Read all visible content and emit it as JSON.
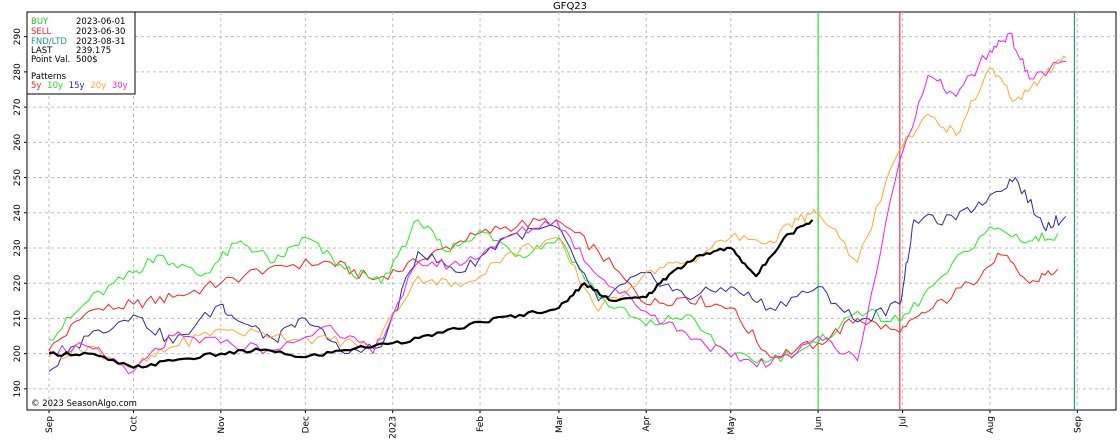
{
  "chart_data": {
    "type": "line",
    "title": "GFQ23",
    "copyright": "© 2023 SeasonAlgo.com",
    "info": {
      "buy_label": "BUY",
      "buy_value": "2023-06-01",
      "sell_label": "SELL",
      "sell_value": "2023-06-30",
      "fnd_label": "FND/LTD",
      "fnd_value": "2023-08-31",
      "last_label": "LAST",
      "last_value": "239.175",
      "pv_label": "Point Val.",
      "pv_value": "500$",
      "patterns_label": "Patterns"
    },
    "x_start": "2022-09-01",
    "x_end": "2023-09-08",
    "ylim": [
      184,
      297
    ],
    "yticks": [
      190,
      200,
      210,
      220,
      230,
      240,
      250,
      260,
      270,
      280,
      290
    ],
    "xticks": [
      {
        "date": "2022-09-01",
        "label": "Sep"
      },
      {
        "date": "2022-10-01",
        "label": "Oct"
      },
      {
        "date": "2022-11-01",
        "label": "Nov"
      },
      {
        "date": "2022-12-01",
        "label": "Dec"
      },
      {
        "date": "2023-01-01",
        "label": "2023"
      },
      {
        "date": "2023-02-01",
        "label": "Feb"
      },
      {
        "date": "2023-03-01",
        "label": "Mar"
      },
      {
        "date": "2023-04-01",
        "label": "Apr"
      },
      {
        "date": "2023-05-01",
        "label": "May"
      },
      {
        "date": "2023-06-01",
        "label": "Jun"
      },
      {
        "date": "2023-07-01",
        "label": "Jul"
      },
      {
        "date": "2023-08-01",
        "label": "Aug"
      },
      {
        "date": "2023-09-01",
        "label": "Sep"
      }
    ],
    "vlines": [
      {
        "date": "2023-06-01",
        "color": "#33dd33"
      },
      {
        "date": "2023-06-30",
        "color": "#ee3344"
      },
      {
        "date": "2023-08-31",
        "color": "#229977"
      }
    ],
    "grid": true,
    "series": [
      {
        "name": "5y",
        "color": "#ff2222",
        "width": 1,
        "x": [
          "2022-09-01",
          "2022-09-15",
          "2022-10-01",
          "2022-10-15",
          "2022-11-01",
          "2022-11-20",
          "2022-12-10",
          "2022-12-25",
          "2023-01-10",
          "2023-01-25",
          "2023-02-10",
          "2023-02-28",
          "2023-03-15",
          "2023-04-01",
          "2023-04-15",
          "2023-05-01",
          "2023-05-15",
          "2023-06-01",
          "2023-06-15",
          "2023-06-30",
          "2023-07-10",
          "2023-07-25",
          "2023-08-05",
          "2023-08-15",
          "2023-08-25"
        ],
        "y": [
          201,
          212,
          214,
          216,
          220,
          225,
          226,
          221,
          226,
          232,
          236,
          238,
          229,
          214,
          216,
          213,
          199,
          203,
          210,
          206,
          212,
          220,
          228,
          220,
          224
        ]
      },
      {
        "name": "10y",
        "color": "#22ee22",
        "width": 1,
        "x": [
          "2022-09-01",
          "2022-09-15",
          "2022-10-01",
          "2022-10-10",
          "2022-10-25",
          "2022-11-08",
          "2022-11-20",
          "2022-12-01",
          "2022-12-15",
          "2022-12-28",
          "2023-01-10",
          "2023-01-20",
          "2023-02-01",
          "2023-02-15",
          "2023-03-01",
          "2023-03-15",
          "2023-04-01",
          "2023-04-15",
          "2023-05-01",
          "2023-05-15",
          "2023-06-01",
          "2023-06-15",
          "2023-06-30",
          "2023-07-15",
          "2023-08-01",
          "2023-08-15",
          "2023-08-25"
        ],
        "y": [
          204,
          215,
          223,
          228,
          222,
          232,
          226,
          233,
          224,
          220,
          238,
          229,
          235,
          228,
          233,
          216,
          208,
          211,
          199,
          198,
          203,
          212,
          209,
          222,
          236,
          232,
          234
        ]
      },
      {
        "name": "15y",
        "color": "#2a2aaa",
        "width": 1,
        "x": [
          "2022-09-01",
          "2022-09-15",
          "2022-10-01",
          "2022-10-15",
          "2022-11-01",
          "2022-11-08",
          "2022-11-20",
          "2022-12-01",
          "2022-12-15",
          "2022-12-28",
          "2023-01-10",
          "2023-01-25",
          "2023-02-10",
          "2023-02-28",
          "2023-03-15",
          "2023-04-01",
          "2023-04-15",
          "2023-05-01",
          "2023-05-15",
          "2023-06-01",
          "2023-06-15",
          "2023-06-30",
          "2023-07-05",
          "2023-07-20",
          "2023-08-01",
          "2023-08-10",
          "2023-08-20",
          "2023-08-28"
        ],
        "y": [
          195,
          205,
          211,
          203,
          214,
          209,
          204,
          210,
          200,
          202,
          229,
          223,
          233,
          236,
          215,
          223,
          216,
          219,
          213,
          219,
          209,
          214,
          238,
          238,
          245,
          250,
          236,
          239
        ]
      },
      {
        "name": "20y",
        "color": "#ffaa33",
        "width": 1,
        "x": [
          "2022-09-01",
          "2022-09-15",
          "2022-10-01",
          "2022-10-15",
          "2022-11-01",
          "2022-11-20",
          "2022-12-10",
          "2022-12-25",
          "2023-01-10",
          "2023-01-25",
          "2023-02-10",
          "2023-02-28",
          "2023-03-15",
          "2023-04-01",
          "2023-04-15",
          "2023-05-01",
          "2023-05-15",
          "2023-05-25",
          "2023-06-01",
          "2023-06-15",
          "2023-06-30",
          "2023-07-10",
          "2023-07-20",
          "2023-08-01",
          "2023-08-10",
          "2023-08-20",
          "2023-08-28"
        ],
        "y": [
          199,
          202,
          196,
          202,
          207,
          205,
          204,
          202,
          222,
          219,
          228,
          233,
          212,
          223,
          226,
          233,
          232,
          238,
          240,
          226,
          258,
          268,
          262,
          281,
          272,
          279,
          284
        ]
      },
      {
        "name": "30y",
        "color": "#ee22ee",
        "width": 1,
        "x": [
          "2022-09-01",
          "2022-09-15",
          "2022-10-01",
          "2022-10-15",
          "2022-11-01",
          "2022-11-20",
          "2022-12-10",
          "2022-12-25",
          "2023-01-10",
          "2023-01-25",
          "2023-02-10",
          "2023-02-28",
          "2023-03-15",
          "2023-04-01",
          "2023-04-15",
          "2023-05-01",
          "2023-05-15",
          "2023-06-01",
          "2023-06-15",
          "2023-06-30",
          "2023-07-10",
          "2023-07-20",
          "2023-08-01",
          "2023-08-08",
          "2023-08-15",
          "2023-08-28"
        ],
        "y": [
          201,
          202,
          195,
          205,
          203,
          201,
          208,
          200,
          226,
          225,
          233,
          238,
          222,
          212,
          206,
          199,
          197,
          205,
          198,
          255,
          279,
          273,
          286,
          291,
          278,
          283
        ]
      },
      {
        "name": "",
        "color": "#000000",
        "width": 2.2,
        "x": [
          "2022-09-01",
          "2022-09-15",
          "2022-10-01",
          "2022-10-15",
          "2022-11-01",
          "2022-11-15",
          "2022-12-01",
          "2022-12-15",
          "2023-01-01",
          "2023-01-15",
          "2023-02-01",
          "2023-02-15",
          "2023-03-01",
          "2023-03-10",
          "2023-03-20",
          "2023-04-01",
          "2023-04-10",
          "2023-04-20",
          "2023-05-01",
          "2023-05-10",
          "2023-05-20",
          "2023-05-30"
        ],
        "y": [
          200,
          200,
          196,
          198,
          200,
          201,
          199,
          201,
          203,
          205,
          209,
          211,
          213,
          220,
          215,
          216,
          223,
          228,
          230,
          222,
          233,
          238
        ]
      }
    ]
  }
}
